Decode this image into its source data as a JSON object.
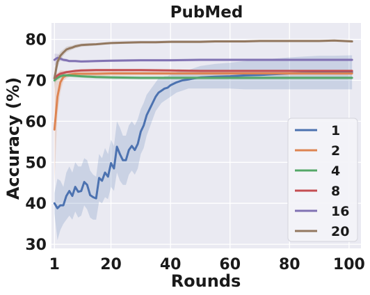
{
  "chart_data": {
    "type": "line",
    "title": "PubMed",
    "xlabel": "Rounds",
    "ylabel": "Accuracy (%)",
    "xlim": [
      0,
      104
    ],
    "ylim": [
      29,
      84
    ],
    "xticks": [
      1,
      20,
      40,
      60,
      80,
      100
    ],
    "yticks": [
      30,
      40,
      50,
      60,
      70,
      80
    ],
    "grid": true,
    "background": "#eaeaf2",
    "legend_position": "bottom-right",
    "series": [
      {
        "name": "1",
        "color": "#4c72b0",
        "x": [
          1,
          2,
          3,
          4,
          5,
          6,
          7,
          8,
          9,
          10,
          11,
          12,
          13,
          14,
          15,
          16,
          17,
          18,
          19,
          20,
          21,
          22,
          23,
          24,
          25,
          26,
          27,
          28,
          29,
          30,
          31,
          32,
          33,
          34,
          35,
          36,
          37,
          38,
          39,
          40,
          42,
          44,
          46,
          48,
          50,
          55,
          60,
          65,
          70,
          75,
          80,
          85,
          90,
          95,
          101
        ],
        "y": [
          40.0,
          38.8,
          39.5,
          39.5,
          41.8,
          43.0,
          41.8,
          44.0,
          42.8,
          43.0,
          45.2,
          44.5,
          42.0,
          41.5,
          41.2,
          46.2,
          45.5,
          47.5,
          46.5,
          49.8,
          48.5,
          53.8,
          52.0,
          50.5,
          50.5,
          53.0,
          54.0,
          53.0,
          54.5,
          57.5,
          59.0,
          61.5,
          63.0,
          64.5,
          66.0,
          67.0,
          67.5,
          68.0,
          68.2,
          68.8,
          69.5,
          70.0,
          70.2,
          70.5,
          70.7,
          70.9,
          71.0,
          71.2,
          71.3,
          71.5,
          71.7,
          71.8,
          71.9,
          71.9,
          72.0
        ],
        "y_low": [
          37.5,
          31.0,
          33.5,
          35.0,
          36.0,
          37.0,
          36.0,
          38.0,
          36.5,
          37.0,
          39.5,
          38.5,
          36.5,
          36.0,
          36.0,
          40.5,
          40.0,
          41.5,
          41.0,
          44.0,
          43.0,
          47.5,
          45.5,
          44.5,
          44.5,
          47.0,
          48.0,
          47.0,
          48.5,
          52.0,
          53.5,
          56.5,
          58.5,
          60.5,
          62.5,
          63.5,
          64.5,
          65.0,
          65.5,
          66.0,
          67.0,
          67.5,
          68.0,
          68.0,
          68.0,
          68.0,
          68.0,
          67.8,
          67.8,
          67.8,
          67.8,
          67.8,
          67.8,
          67.8,
          67.8
        ],
        "y_high": [
          42.5,
          46.0,
          45.5,
          44.0,
          47.5,
          49.0,
          47.5,
          50.0,
          49.0,
          49.0,
          51.0,
          50.5,
          48.0,
          47.0,
          46.5,
          52.0,
          51.0,
          53.5,
          52.0,
          55.5,
          54.0,
          60.0,
          58.5,
          56.5,
          56.5,
          59.0,
          60.0,
          59.0,
          60.5,
          63.0,
          64.5,
          66.5,
          67.5,
          68.5,
          69.5,
          70.5,
          70.5,
          71.0,
          71.0,
          71.5,
          72.0,
          72.5,
          72.5,
          73.0,
          73.5,
          74.0,
          74.3,
          74.7,
          75.0,
          75.3,
          75.6,
          75.8,
          76.0,
          76.0,
          76.1
        ]
      },
      {
        "name": "2",
        "color": "#dd8452",
        "x": [
          1,
          2,
          3,
          4,
          5,
          6,
          8,
          10,
          15,
          20,
          30,
          40,
          50,
          60,
          70,
          80,
          90,
          101
        ],
        "y": [
          58.0,
          66.0,
          69.5,
          70.8,
          71.2,
          71.4,
          71.6,
          71.6,
          71.6,
          71.7,
          71.7,
          71.7,
          71.7,
          71.7,
          71.7,
          71.7,
          71.7,
          71.7
        ],
        "y_low": [
          45.0,
          61.5,
          67.0,
          69.8,
          70.5,
          70.8,
          71.0,
          71.0,
          71.0,
          71.1,
          71.2,
          71.2,
          71.2,
          71.2,
          71.2,
          71.2,
          71.2,
          71.2
        ],
        "y_high": [
          70.0,
          71.5,
          72.5,
          72.4,
          72.2,
          72.0,
          72.2,
          72.2,
          72.2,
          72.3,
          72.2,
          72.2,
          72.2,
          72.2,
          72.2,
          72.2,
          72.2,
          72.2
        ]
      },
      {
        "name": "4",
        "color": "#55a868",
        "x": [
          1,
          2,
          3,
          4,
          5,
          6,
          8,
          10,
          15,
          20,
          30,
          40,
          50,
          60,
          70,
          80,
          90,
          101
        ],
        "y": [
          70.0,
          70.6,
          71.0,
          71.2,
          71.2,
          71.2,
          71.1,
          71.0,
          70.8,
          70.7,
          70.6,
          70.6,
          70.6,
          70.6,
          70.6,
          70.6,
          70.6,
          70.6
        ],
        "y_low": [
          69.3,
          70.0,
          70.5,
          70.7,
          70.8,
          70.8,
          70.7,
          70.6,
          70.4,
          70.3,
          70.2,
          70.2,
          70.2,
          70.2,
          70.2,
          70.2,
          70.2,
          70.2
        ],
        "y_high": [
          70.7,
          71.2,
          71.5,
          71.7,
          71.6,
          71.6,
          71.5,
          71.4,
          71.2,
          71.1,
          71.0,
          71.0,
          71.0,
          71.0,
          71.0,
          71.0,
          71.0,
          71.0
        ]
      },
      {
        "name": "8",
        "color": "#c44e52",
        "x": [
          1,
          2,
          3,
          4,
          5,
          6,
          8,
          10,
          15,
          20,
          30,
          40,
          50,
          60,
          70,
          80,
          90,
          101
        ],
        "y": [
          70.5,
          71.2,
          71.6,
          71.8,
          72.0,
          72.1,
          72.3,
          72.4,
          72.5,
          72.5,
          72.5,
          72.4,
          72.3,
          72.3,
          72.3,
          72.3,
          72.3,
          72.3
        ],
        "y_low": [
          69.8,
          70.6,
          71.1,
          71.4,
          71.6,
          71.8,
          72.0,
          72.1,
          72.2,
          72.2,
          72.2,
          72.1,
          72.0,
          72.0,
          72.0,
          72.0,
          72.0,
          72.0
        ],
        "y_high": [
          71.2,
          71.8,
          72.1,
          72.2,
          72.4,
          72.4,
          72.6,
          72.7,
          72.8,
          72.8,
          72.8,
          72.7,
          72.6,
          72.6,
          72.6,
          72.6,
          72.6,
          72.6
        ]
      },
      {
        "name": "16",
        "color": "#8172b3",
        "x": [
          1,
          2,
          3,
          4,
          5,
          6,
          8,
          10,
          15,
          20,
          30,
          40,
          50,
          60,
          70,
          80,
          90,
          101
        ],
        "y": [
          75.0,
          75.5,
          75.3,
          75.0,
          74.9,
          74.7,
          74.7,
          74.6,
          74.7,
          74.8,
          74.9,
          74.9,
          75.0,
          75.0,
          75.0,
          75.0,
          75.0,
          75.0
        ],
        "y_low": [
          73.5,
          74.5,
          74.7,
          74.6,
          74.5,
          74.4,
          74.4,
          74.3,
          74.4,
          74.5,
          74.6,
          74.6,
          74.7,
          74.7,
          74.7,
          74.7,
          74.7,
          74.7
        ],
        "y_high": [
          76.5,
          76.5,
          75.9,
          75.4,
          75.3,
          75.0,
          75.0,
          74.9,
          75.0,
          75.1,
          75.2,
          75.2,
          75.3,
          75.3,
          75.3,
          75.3,
          75.3,
          75.3
        ]
      },
      {
        "name": "20",
        "color": "#937860",
        "x": [
          1,
          2,
          3,
          4,
          5,
          6,
          7,
          8,
          10,
          12,
          15,
          18,
          20,
          25,
          30,
          35,
          40,
          45,
          50,
          55,
          60,
          65,
          70,
          75,
          80,
          85,
          90,
          95,
          101
        ],
        "y": [
          70.5,
          74.5,
          76.0,
          76.8,
          77.5,
          77.8,
          78.0,
          78.3,
          78.6,
          78.7,
          78.8,
          79.0,
          79.1,
          79.2,
          79.3,
          79.3,
          79.4,
          79.4,
          79.4,
          79.5,
          79.5,
          79.5,
          79.6,
          79.6,
          79.6,
          79.6,
          79.6,
          79.7,
          79.5
        ],
        "y_low": [
          68.0,
          73.0,
          75.0,
          76.0,
          76.8,
          77.2,
          77.5,
          77.8,
          78.2,
          78.3,
          78.5,
          78.7,
          78.8,
          78.9,
          79.0,
          79.0,
          79.1,
          79.1,
          79.1,
          79.2,
          79.2,
          79.2,
          79.3,
          79.3,
          79.3,
          79.3,
          79.3,
          79.4,
          79.2
        ],
        "y_high": [
          73.0,
          76.0,
          77.0,
          77.6,
          78.2,
          78.4,
          78.5,
          78.8,
          79.0,
          79.1,
          79.1,
          79.3,
          79.4,
          79.5,
          79.6,
          79.6,
          79.7,
          79.7,
          79.7,
          79.8,
          79.8,
          79.8,
          79.9,
          79.9,
          79.9,
          79.9,
          79.9,
          80.0,
          79.8
        ]
      }
    ]
  }
}
